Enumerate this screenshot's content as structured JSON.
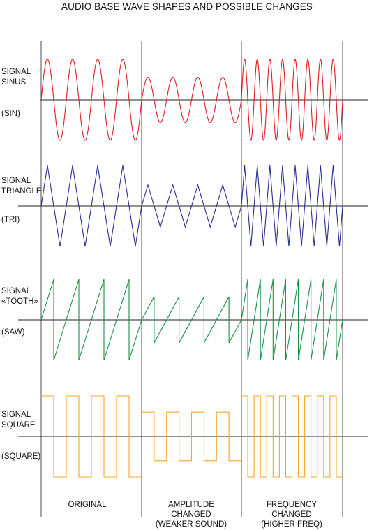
{
  "title": "AUDIO BASE WAVE SHAPES AND POSSIBLE CHANGES",
  "colors": {
    "axis": "#222222",
    "sin": "#e01c24",
    "tri": "#2b2e8f",
    "saw": "#1b9148",
    "square": "#f5a623"
  },
  "rows": [
    {
      "id": "sin",
      "name_lines": [
        "SIGNAL",
        "SINUS"
      ],
      "code": "(SIN)",
      "shape": "sine",
      "cycles": [
        4,
        4,
        8
      ],
      "amplitude": [
        1,
        0.56,
        1
      ]
    },
    {
      "id": "tri",
      "name_lines": [
        "SIGNAL",
        "TRIANGLE"
      ],
      "code": "(TRI)",
      "shape": "triangle",
      "cycles": [
        4,
        4,
        8
      ],
      "amplitude": [
        1,
        0.52,
        1
      ]
    },
    {
      "id": "saw",
      "name_lines": [
        "SIGNAL",
        "«TOOTH»"
      ],
      "code": "(SAW)",
      "shape": "saw",
      "cycles": [
        4,
        4,
        8
      ],
      "amplitude": [
        1,
        0.57,
        1
      ]
    },
    {
      "id": "square",
      "name_lines": [
        "SIGNAL",
        "SQUARE"
      ],
      "code": "(SQUARE)",
      "shape": "square",
      "cycles": [
        4,
        4,
        8
      ],
      "amplitude": [
        1,
        0.6,
        1
      ]
    }
  ],
  "columns": [
    {
      "lines": [
        "ORIGINAL"
      ]
    },
    {
      "lines": [
        "AMPLITUDE",
        "CHANGED",
        "(WEAKER SOUND)"
      ]
    },
    {
      "lines": [
        "FREQUENCY",
        "CHANGED",
        "(HIGHER FREQ)"
      ]
    }
  ]
}
